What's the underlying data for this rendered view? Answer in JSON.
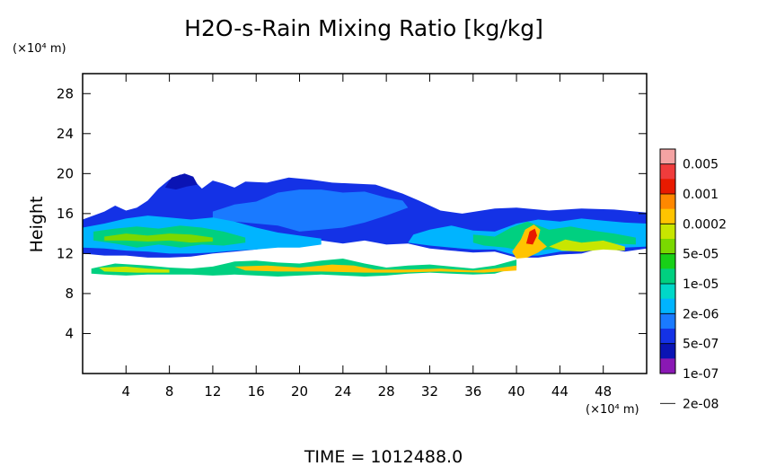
{
  "chart_data": {
    "type": "heatmap",
    "title": "H2O-s-Rain Mixing Ratio [kg/kg]",
    "ylabel": "Height",
    "x_unit": "(×10⁴ m)",
    "y_unit": "(×10⁴ m)",
    "xlim": [
      0,
      52
    ],
    "ylim": [
      0,
      30
    ],
    "x_ticks": [
      4,
      8,
      12,
      16,
      20,
      24,
      28,
      32,
      36,
      40,
      44,
      48
    ],
    "y_ticks": [
      4,
      8,
      12,
      16,
      20,
      24,
      28
    ],
    "footer": "TIME = 1012488.0",
    "colorbar": {
      "labels": [
        "0.005",
        "0.001",
        "0.0002",
        "5e-05",
        "1e-05",
        "2e-06",
        "5e-07",
        "1e-07",
        "2e-08"
      ],
      "colors": [
        "#f4a3a3",
        "#f03c3c",
        "#e81a00",
        "#ff8800",
        "#ffc400",
        "#c8e600",
        "#7ad800",
        "#18d018",
        "#00d080",
        "#00d8c8",
        "#00b4ff",
        "#1a7aff",
        "#1432e6",
        "#0a14b4",
        "#8a18b4"
      ]
    },
    "regions": [
      {
        "name": "upper anvil",
        "level": 12,
        "pts": [
          [
            0,
            15.4
          ],
          [
            2,
            16.2
          ],
          [
            3,
            16.8
          ],
          [
            4,
            16.3
          ],
          [
            5,
            16.6
          ],
          [
            6,
            17.3
          ],
          [
            7,
            18.5
          ],
          [
            8,
            19.4
          ],
          [
            9,
            19.9
          ],
          [
            10,
            19.6
          ],
          [
            11,
            18.5
          ],
          [
            12,
            19.3
          ],
          [
            13,
            19.0
          ],
          [
            14,
            18.6
          ],
          [
            15,
            19.2
          ],
          [
            17,
            19.1
          ],
          [
            19,
            19.6
          ],
          [
            21,
            19.4
          ],
          [
            23,
            19.1
          ],
          [
            25,
            19.0
          ],
          [
            27,
            18.9
          ],
          [
            29.5,
            18.0
          ],
          [
            31,
            17.3
          ],
          [
            33,
            16.3
          ],
          [
            35,
            16.0
          ],
          [
            38,
            16.5
          ],
          [
            40,
            16.6
          ],
          [
            43,
            16.3
          ],
          [
            46,
            16.5
          ],
          [
            49,
            16.4
          ],
          [
            52,
            16.1
          ],
          [
            52,
            12.5
          ],
          [
            50,
            12.2
          ],
          [
            48,
            12.6
          ],
          [
            46,
            12.0
          ],
          [
            44,
            11.9
          ],
          [
            42,
            11.6
          ],
          [
            40,
            11.6
          ],
          [
            38,
            12.2
          ],
          [
            36,
            12.1
          ],
          [
            34,
            12.3
          ],
          [
            32,
            12.5
          ],
          [
            30,
            13.0
          ],
          [
            28,
            12.9
          ],
          [
            26,
            13.3
          ],
          [
            24,
            13.0
          ],
          [
            22,
            13.3
          ],
          [
            20,
            13.0
          ],
          [
            18,
            12.8
          ],
          [
            16,
            12.4
          ],
          [
            14,
            12.2
          ],
          [
            12,
            12.0
          ],
          [
            10,
            11.7
          ],
          [
            8,
            11.6
          ],
          [
            6,
            11.6
          ],
          [
            4,
            11.8
          ],
          [
            2,
            11.8
          ],
          [
            0,
            12.0
          ]
        ]
      },
      {
        "name": "cloud top cap",
        "level": 13,
        "pts": [
          [
            7.6,
            18.6
          ],
          [
            8.2,
            19.6
          ],
          [
            9.4,
            20.0
          ],
          [
            10.2,
            19.7
          ],
          [
            10.6,
            18.9
          ],
          [
            9.6,
            18.7
          ],
          [
            8.6,
            18.4
          ]
        ]
      },
      {
        "name": "anvil core",
        "level": 11,
        "pts": [
          [
            12,
            16.2
          ],
          [
            14,
            16.9
          ],
          [
            16,
            17.2
          ],
          [
            18,
            18.1
          ],
          [
            20,
            18.4
          ],
          [
            22,
            18.4
          ],
          [
            24,
            18.1
          ],
          [
            26,
            18.2
          ],
          [
            28,
            17.6
          ],
          [
            29.5,
            17.3
          ],
          [
            30,
            16.6
          ],
          [
            28,
            15.8
          ],
          [
            26,
            15.1
          ],
          [
            24,
            14.6
          ],
          [
            22,
            14.4
          ],
          [
            20,
            14.2
          ],
          [
            18,
            14.8
          ],
          [
            16,
            15.0
          ],
          [
            14,
            15.2
          ],
          [
            12,
            15.4
          ]
        ]
      },
      {
        "name": "mid band left",
        "level": 10,
        "pts": [
          [
            0,
            14.6
          ],
          [
            2,
            15.0
          ],
          [
            4,
            15.5
          ],
          [
            6,
            15.8
          ],
          [
            8,
            15.6
          ],
          [
            10,
            15.4
          ],
          [
            12,
            15.6
          ],
          [
            14,
            15.2
          ],
          [
            16,
            14.6
          ],
          [
            18,
            14.1
          ],
          [
            20,
            13.8
          ],
          [
            22,
            13.5
          ],
          [
            22,
            12.9
          ],
          [
            20,
            12.6
          ],
          [
            18,
            12.6
          ],
          [
            16,
            12.4
          ],
          [
            14,
            12.3
          ],
          [
            12,
            12.1
          ],
          [
            10,
            12.0
          ],
          [
            8,
            12.0
          ],
          [
            6,
            12.2
          ],
          [
            4,
            12.3
          ],
          [
            2,
            12.5
          ],
          [
            0,
            12.6
          ]
        ]
      },
      {
        "name": "mid band right",
        "level": 10,
        "pts": [
          [
            32,
            14.4
          ],
          [
            34,
            14.8
          ],
          [
            36,
            14.3
          ],
          [
            38,
            14.2
          ],
          [
            40,
            15.0
          ],
          [
            42,
            15.4
          ],
          [
            44,
            15.2
          ],
          [
            46,
            15.5
          ],
          [
            48,
            15.3
          ],
          [
            50,
            15.1
          ],
          [
            52,
            15.0
          ],
          [
            52,
            12.7
          ],
          [
            50,
            12.6
          ],
          [
            48,
            12.8
          ],
          [
            46,
            12.3
          ],
          [
            44,
            12.2
          ],
          [
            42,
            11.8
          ],
          [
            40,
            11.8
          ],
          [
            38,
            12.4
          ],
          [
            36,
            12.4
          ],
          [
            34,
            12.6
          ],
          [
            32,
            12.8
          ],
          [
            30,
            13.1
          ],
          [
            30.5,
            13.9
          ]
        ]
      },
      {
        "name": "green patch left",
        "level": 8,
        "pts": [
          [
            1,
            14.2
          ],
          [
            3,
            14.5
          ],
          [
            5,
            14.7
          ],
          [
            7,
            14.5
          ],
          [
            9,
            14.8
          ],
          [
            11,
            14.6
          ],
          [
            13,
            14.2
          ],
          [
            15,
            13.6
          ],
          [
            15,
            13.1
          ],
          [
            13,
            12.8
          ],
          [
            11,
            12.9
          ],
          [
            9,
            12.6
          ],
          [
            7,
            12.9
          ],
          [
            5,
            12.6
          ],
          [
            3,
            13.0
          ],
          [
            1,
            13.3
          ]
        ]
      },
      {
        "name": "yellow patch left",
        "level": 6,
        "pts": [
          [
            2,
            13.7
          ],
          [
            4,
            14.0
          ],
          [
            6,
            13.8
          ],
          [
            8,
            14.0
          ],
          [
            10,
            13.9
          ],
          [
            12,
            13.6
          ],
          [
            12,
            13.2
          ],
          [
            10,
            13.1
          ],
          [
            8,
            13.3
          ],
          [
            6,
            13.2
          ],
          [
            4,
            13.3
          ],
          [
            2,
            13.3
          ]
        ]
      },
      {
        "name": "green patch right",
        "level": 8,
        "pts": [
          [
            36,
            13.9
          ],
          [
            38,
            13.7
          ],
          [
            39.5,
            14.6
          ],
          [
            41,
            15.2
          ],
          [
            43,
            14.4
          ],
          [
            45,
            14.7
          ],
          [
            47,
            14.3
          ],
          [
            49,
            14.0
          ],
          [
            51,
            13.6
          ],
          [
            51,
            12.9
          ],
          [
            49,
            13.0
          ],
          [
            47,
            12.7
          ],
          [
            45,
            12.6
          ],
          [
            43,
            12.4
          ],
          [
            41,
            12.2
          ],
          [
            39,
            12.6
          ],
          [
            37,
            12.8
          ],
          [
            36,
            13.1
          ]
        ]
      },
      {
        "name": "convective core",
        "level": 4,
        "pts": [
          [
            39.6,
            12.2
          ],
          [
            40.4,
            13.4
          ],
          [
            40.8,
            14.4
          ],
          [
            41.6,
            14.9
          ],
          [
            42.2,
            14.4
          ],
          [
            42.0,
            13.5
          ],
          [
            42.8,
            12.7
          ],
          [
            42.0,
            12.1
          ],
          [
            41.0,
            11.6
          ],
          [
            40.0,
            11.5
          ]
        ]
      },
      {
        "name": "convective peak",
        "level": 2,
        "pts": [
          [
            40.9,
            13.0
          ],
          [
            41.2,
            14.2
          ],
          [
            41.7,
            14.5
          ],
          [
            41.9,
            13.8
          ],
          [
            41.5,
            12.9
          ]
        ]
      },
      {
        "name": "right cores",
        "level": 5,
        "pts": [
          [
            43,
            12.7
          ],
          [
            44.5,
            13.4
          ],
          [
            46,
            13.1
          ],
          [
            48,
            13.3
          ],
          [
            50,
            12.7
          ],
          [
            50,
            12.3
          ],
          [
            48,
            12.4
          ],
          [
            46,
            12.2
          ],
          [
            44.2,
            12.3
          ]
        ]
      },
      {
        "name": "lower rain layer",
        "level": 8,
        "pts": [
          [
            0.8,
            10.5
          ],
          [
            3,
            11.0
          ],
          [
            6,
            10.8
          ],
          [
            8,
            10.6
          ],
          [
            10,
            10.5
          ],
          [
            12,
            10.7
          ],
          [
            14,
            11.2
          ],
          [
            16,
            11.3
          ],
          [
            18,
            11.1
          ],
          [
            20,
            11.0
          ],
          [
            22,
            11.3
          ],
          [
            24,
            11.5
          ],
          [
            26,
            11.0
          ],
          [
            28,
            10.6
          ],
          [
            30,
            10.8
          ],
          [
            32,
            10.9
          ],
          [
            34,
            10.7
          ],
          [
            36,
            10.5
          ],
          [
            38,
            10.8
          ],
          [
            40,
            11.4
          ],
          [
            40,
            10.6
          ],
          [
            38,
            10.0
          ],
          [
            36,
            9.9
          ],
          [
            34,
            10.0
          ],
          [
            32,
            10.1
          ],
          [
            30,
            10.0
          ],
          [
            28,
            9.8
          ],
          [
            26,
            9.7
          ],
          [
            24,
            9.8
          ],
          [
            22,
            9.9
          ],
          [
            20,
            9.8
          ],
          [
            18,
            9.7
          ],
          [
            16,
            9.8
          ],
          [
            14,
            9.9
          ],
          [
            12,
            9.8
          ],
          [
            10,
            9.9
          ],
          [
            8,
            9.9
          ],
          [
            6,
            9.9
          ],
          [
            4,
            9.8
          ],
          [
            2,
            9.9
          ],
          [
            0.8,
            10.0
          ]
        ]
      },
      {
        "name": "lower rain core",
        "level": 4,
        "pts": [
          [
            14,
            10.7
          ],
          [
            17,
            10.8
          ],
          [
            20,
            10.6
          ],
          [
            23,
            10.9
          ],
          [
            25,
            10.8
          ],
          [
            27,
            10.4
          ],
          [
            30,
            10.4
          ],
          [
            33,
            10.5
          ],
          [
            36,
            10.3
          ],
          [
            38,
            10.5
          ],
          [
            40,
            10.8
          ],
          [
            40,
            10.3
          ],
          [
            37,
            10.1
          ],
          [
            33,
            10.2
          ],
          [
            29,
            10.1
          ],
          [
            26,
            10.1
          ],
          [
            22,
            10.2
          ],
          [
            18,
            10.2
          ],
          [
            15,
            10.3
          ]
        ]
      },
      {
        "name": "lower rain left",
        "level": 5,
        "pts": [
          [
            1.5,
            10.6
          ],
          [
            4,
            10.7
          ],
          [
            6,
            10.5
          ],
          [
            8,
            10.4
          ],
          [
            8,
            10.1
          ],
          [
            5,
            10.1
          ],
          [
            2,
            10.2
          ]
        ]
      }
    ]
  }
}
